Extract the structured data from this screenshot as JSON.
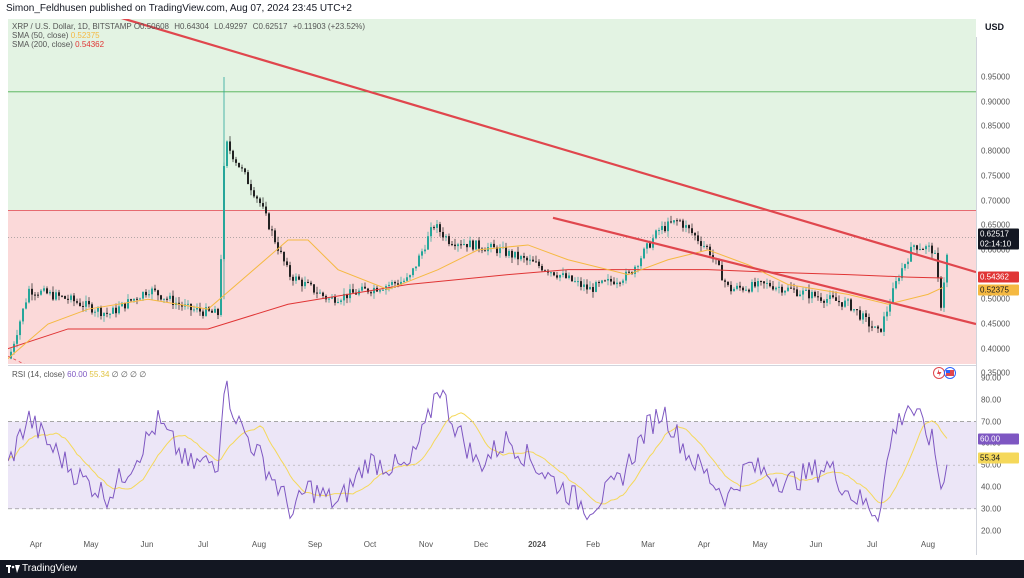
{
  "header": {
    "published": "Simon_Feldhusen published on TradingView.com, Aug 07, 2024 23:45 UTC+2"
  },
  "footer": {
    "brand": "TradingView"
  },
  "price_pane": {
    "currency": "USD",
    "legend": {
      "symbol": "XRP / U.S. Dollar, 1D, BITSTAMP",
      "open": "O0.50608",
      "high": "H0.64304",
      "low": "L0.49297",
      "close": "C0.62517",
      "change": "+0.11903 (+23.52%)",
      "sma50_label": "SMA (50, close)",
      "sma50_value": "0.52375",
      "sma200_label": "SMA (200, close)",
      "sma200_value": "0.54362"
    },
    "axis_ticks": [
      "0.95000",
      "0.90000",
      "0.85000",
      "0.80000",
      "0.75000",
      "0.70000",
      "0.65000",
      "0.60000",
      "0.55000",
      "0.50000",
      "0.45000",
      "0.40000",
      "0.35000"
    ],
    "last_price": "0.62517",
    "countdown": "02:14:10",
    "sma200_tag": "0.54362",
    "sma50_tag": "0.52375",
    "colors": {
      "green_zone": "#e3f3e3",
      "red_zone": "#fbd9d9",
      "trendline": "#e0464d",
      "sma50": "#f5b942",
      "sma200": "#e03535",
      "candle_up": "#26a69a",
      "candle_down": "#222222"
    }
  },
  "rsi_pane": {
    "legend": {
      "label": "RSI (14, close)",
      "rsi_value": "60.00",
      "ma_value": "55.34",
      "extra": "∅ ∅ ∅ ∅"
    },
    "axis_ticks": [
      "90.00",
      "80.00",
      "70.00",
      "60.00",
      "50.00",
      "40.00",
      "30.00",
      "20.00"
    ],
    "rsi_tag": "60.00",
    "ma_tag": "55.34",
    "colors": {
      "rsi": "#7e57c2",
      "ma": "#f5d85a",
      "band": "#ece6f7"
    }
  },
  "time_axis": [
    "Apr",
    "May",
    "Jun",
    "Jul",
    "Aug",
    "Sep",
    "Oct",
    "Nov",
    "Dec",
    "2024",
    "Feb",
    "Mar",
    "Apr",
    "May",
    "Jun",
    "Jul",
    "Aug"
  ]
}
